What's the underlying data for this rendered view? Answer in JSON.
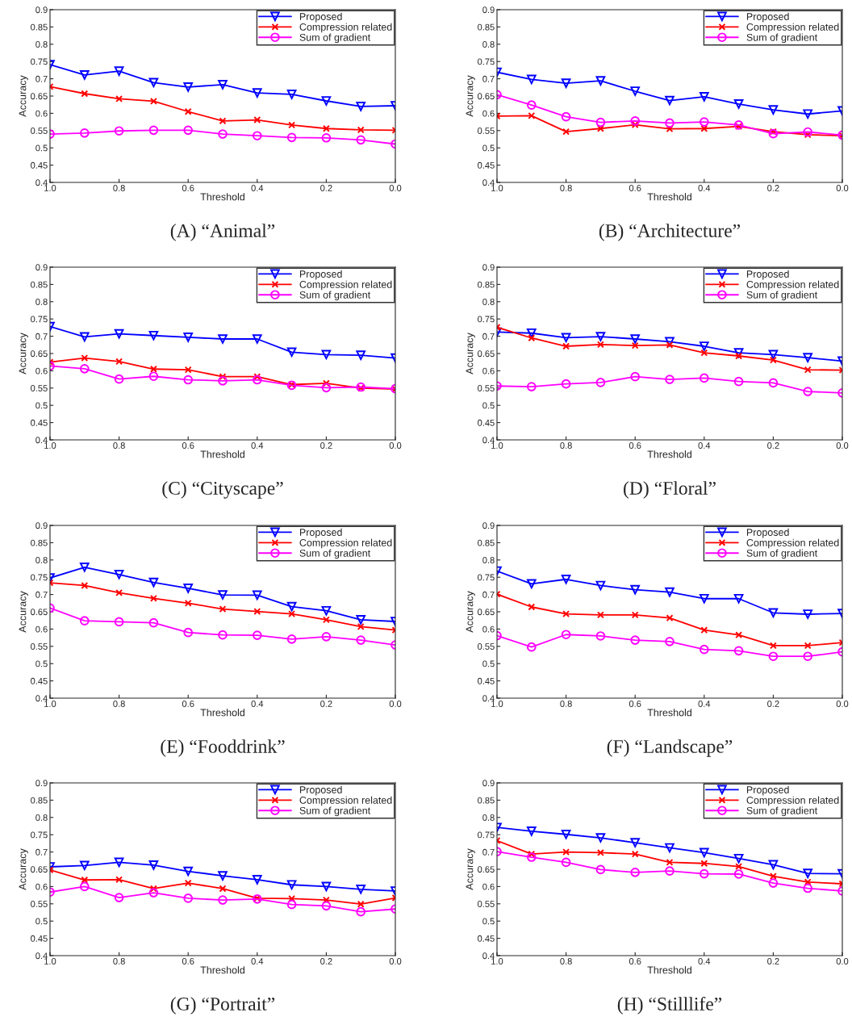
{
  "chart_data": [
    {
      "type": "line",
      "title": "(A) “Animal”",
      "xlabel": "Threshold",
      "ylabel": "Accuracy",
      "x": [
        1.0,
        0.9,
        0.8,
        0.7,
        0.6,
        0.5,
        0.4,
        0.3,
        0.2,
        0.1,
        0.0
      ],
      "xlim": [
        1.0,
        0.0
      ],
      "xticks": [
        {
          "value": 1.0,
          "label": "1.0"
        },
        {
          "value": 0.8,
          "label": "0.8"
        },
        {
          "value": 0.6,
          "label": "0.6"
        },
        {
          "value": 0.4,
          "label": "0.4"
        },
        {
          "value": 0.2,
          "label": "0.2"
        },
        {
          "value": 0.0,
          "label": "0.0"
        }
      ],
      "ylim": [
        0.4,
        0.9
      ],
      "yticks": [
        0.4,
        0.45,
        0.5,
        0.55,
        0.6,
        0.65,
        0.7,
        0.75,
        0.8,
        0.85,
        0.9
      ],
      "legend": "top right",
      "grid": false,
      "series": [
        {
          "name": "Proposed",
          "color": "#0000ff",
          "marker": "triangle",
          "values": [
            0.741,
            0.711,
            0.722,
            0.689,
            0.676,
            0.683,
            0.659,
            0.655,
            0.636,
            0.62,
            0.622
          ]
        },
        {
          "name": "Compression related",
          "color": "#ff0000",
          "marker": "cross",
          "values": [
            0.677,
            0.657,
            0.642,
            0.635,
            0.605,
            0.578,
            0.581,
            0.566,
            0.556,
            0.552,
            0.551
          ]
        },
        {
          "name": "Sum of gradient",
          "color": "#ff00ff",
          "marker": "circle",
          "values": [
            0.54,
            0.543,
            0.549,
            0.551,
            0.551,
            0.54,
            0.535,
            0.53,
            0.529,
            0.523,
            0.511
          ]
        }
      ]
    },
    {
      "type": "line",
      "title": "(B) “Architecture”",
      "xlabel": "Threshold",
      "ylabel": "Accuracy",
      "x": [
        1.0,
        0.9,
        0.8,
        0.7,
        0.6,
        0.5,
        0.4,
        0.3,
        0.2,
        0.1,
        0.0
      ],
      "xlim": [
        1.0,
        0.0
      ],
      "xticks": [
        {
          "value": 1.0,
          "label": "1.0"
        },
        {
          "value": 0.8,
          "label": "0.8"
        },
        {
          "value": 0.6,
          "label": "0.6"
        },
        {
          "value": 0.4,
          "label": "0.4"
        },
        {
          "value": 0.2,
          "label": "0.2"
        },
        {
          "value": 0.0,
          "label": "0.0"
        }
      ],
      "ylim": [
        0.4,
        0.9
      ],
      "yticks": [
        0.4,
        0.45,
        0.5,
        0.55,
        0.6,
        0.65,
        0.7,
        0.75,
        0.8,
        0.85,
        0.9
      ],
      "legend": "top right",
      "grid": false,
      "series": [
        {
          "name": "Proposed",
          "color": "#0000ff",
          "marker": "triangle",
          "values": [
            0.719,
            0.698,
            0.687,
            0.694,
            0.664,
            0.637,
            0.648,
            0.627,
            0.61,
            0.598,
            0.607
          ]
        },
        {
          "name": "Compression related",
          "color": "#ff0000",
          "marker": "cross",
          "values": [
            0.592,
            0.593,
            0.547,
            0.556,
            0.567,
            0.555,
            0.556,
            0.562,
            0.547,
            0.538,
            0.535
          ]
        },
        {
          "name": "Sum of gradient",
          "color": "#ff00ff",
          "marker": "circle",
          "values": [
            0.654,
            0.624,
            0.59,
            0.574,
            0.578,
            0.572,
            0.575,
            0.566,
            0.541,
            0.546,
            0.537
          ]
        }
      ]
    },
    {
      "type": "line",
      "title": "(C) “Cityscape”",
      "xlabel": "Threshold",
      "ylabel": "Accuracy",
      "x": [
        1.0,
        0.9,
        0.8,
        0.7,
        0.6,
        0.5,
        0.4,
        0.3,
        0.2,
        0.1,
        0.0
      ],
      "xlim": [
        1.0,
        0.0
      ],
      "xticks": [
        {
          "value": 1.0,
          "label": "1.0"
        },
        {
          "value": 0.8,
          "label": "0.8"
        },
        {
          "value": 0.6,
          "label": "0.6"
        },
        {
          "value": 0.4,
          "label": "0.4"
        },
        {
          "value": 0.2,
          "label": "0.2"
        },
        {
          "value": 0.0,
          "label": "0.0"
        }
      ],
      "ylim": [
        0.4,
        0.9
      ],
      "yticks": [
        0.4,
        0.45,
        0.5,
        0.55,
        0.6,
        0.65,
        0.7,
        0.75,
        0.8,
        0.85,
        0.9
      ],
      "legend": "top right",
      "grid": false,
      "series": [
        {
          "name": "Proposed",
          "color": "#0000ff",
          "marker": "triangle",
          "values": [
            0.728,
            0.698,
            0.707,
            0.702,
            0.697,
            0.692,
            0.692,
            0.654,
            0.647,
            0.645,
            0.637
          ]
        },
        {
          "name": "Compression related",
          "color": "#ff0000",
          "marker": "cross",
          "values": [
            0.625,
            0.637,
            0.627,
            0.605,
            0.603,
            0.583,
            0.583,
            0.56,
            0.564,
            0.55,
            0.547
          ]
        },
        {
          "name": "Sum of gradient",
          "color": "#ff00ff",
          "marker": "circle",
          "values": [
            0.614,
            0.606,
            0.576,
            0.584,
            0.574,
            0.571,
            0.574,
            0.558,
            0.551,
            0.553,
            0.548
          ]
        }
      ]
    },
    {
      "type": "line",
      "title": "(D) “Floral”",
      "xlabel": "Threshold",
      "ylabel": "Accuracy",
      "x": [
        1.0,
        0.9,
        0.8,
        0.7,
        0.6,
        0.5,
        0.4,
        0.3,
        0.2,
        0.1,
        0.0
      ],
      "xlim": [
        1.0,
        0.0
      ],
      "xticks": [
        {
          "value": 1.0,
          "label": "1.0"
        },
        {
          "value": 0.8,
          "label": "0.8"
        },
        {
          "value": 0.6,
          "label": "0.6"
        },
        {
          "value": 0.4,
          "label": "0.4"
        },
        {
          "value": 0.2,
          "label": "0.2"
        },
        {
          "value": 0.0,
          "label": "0.0"
        }
      ],
      "ylim": [
        0.4,
        0.9
      ],
      "yticks": [
        0.4,
        0.45,
        0.5,
        0.55,
        0.6,
        0.65,
        0.7,
        0.75,
        0.8,
        0.85,
        0.9
      ],
      "legend": "top right",
      "grid": false,
      "series": [
        {
          "name": "Proposed",
          "color": "#0000ff",
          "marker": "triangle",
          "values": [
            0.712,
            0.709,
            0.696,
            0.699,
            0.692,
            0.684,
            0.671,
            0.652,
            0.647,
            0.638,
            0.628
          ]
        },
        {
          "name": "Compression related",
          "color": "#ff0000",
          "marker": "cross",
          "values": [
            0.726,
            0.695,
            0.671,
            0.676,
            0.673,
            0.675,
            0.652,
            0.643,
            0.631,
            0.603,
            0.602
          ]
        },
        {
          "name": "Sum of gradient",
          "color": "#ff00ff",
          "marker": "circle",
          "values": [
            0.556,
            0.554,
            0.562,
            0.566,
            0.583,
            0.575,
            0.579,
            0.569,
            0.565,
            0.54,
            0.536
          ]
        }
      ]
    },
    {
      "type": "line",
      "title": "(E) “Fooddrink”",
      "xlabel": "Threshold",
      "ylabel": "Accuracy",
      "x": [
        1.0,
        0.9,
        0.8,
        0.7,
        0.6,
        0.5,
        0.4,
        0.3,
        0.2,
        0.1,
        0.0
      ],
      "xlim": [
        1.0,
        0.0
      ],
      "xticks": [
        {
          "value": 1.0,
          "label": "1.0"
        },
        {
          "value": 0.8,
          "label": "0.8"
        },
        {
          "value": 0.6,
          "label": "0.6"
        },
        {
          "value": 0.4,
          "label": "0.4"
        },
        {
          "value": 0.2,
          "label": "0.2"
        },
        {
          "value": 0.0,
          "label": "0.0"
        }
      ],
      "ylim": [
        0.4,
        0.9
      ],
      "yticks": [
        0.4,
        0.45,
        0.5,
        0.55,
        0.6,
        0.65,
        0.7,
        0.75,
        0.8,
        0.85,
        0.9
      ],
      "legend": "top right",
      "grid": false,
      "series": [
        {
          "name": "Proposed",
          "color": "#0000ff",
          "marker": "triangle",
          "values": [
            0.748,
            0.779,
            0.758,
            0.735,
            0.718,
            0.699,
            0.698,
            0.665,
            0.653,
            0.627,
            0.622
          ]
        },
        {
          "name": "Compression related",
          "color": "#ff0000",
          "marker": "cross",
          "values": [
            0.734,
            0.726,
            0.705,
            0.689,
            0.675,
            0.658,
            0.651,
            0.644,
            0.627,
            0.607,
            0.597
          ]
        },
        {
          "name": "Sum of gradient",
          "color": "#ff00ff",
          "marker": "circle",
          "values": [
            0.661,
            0.624,
            0.621,
            0.618,
            0.59,
            0.583,
            0.582,
            0.571,
            0.578,
            0.568,
            0.554
          ]
        }
      ]
    },
    {
      "type": "line",
      "title": "(F) “Landscape”",
      "xlabel": "Threshold",
      "ylabel": "Accuracy",
      "x": [
        1.0,
        0.9,
        0.8,
        0.7,
        0.6,
        0.5,
        0.4,
        0.3,
        0.2,
        0.1,
        0.0
      ],
      "xlim": [
        1.0,
        0.0
      ],
      "xticks": [
        {
          "value": 1.0,
          "label": "1.0"
        },
        {
          "value": 0.8,
          "label": "0.8"
        },
        {
          "value": 0.6,
          "label": "0.6"
        },
        {
          "value": 0.4,
          "label": "0.4"
        },
        {
          "value": 0.2,
          "label": "0.2"
        },
        {
          "value": 0.0,
          "label": "0.0"
        }
      ],
      "ylim": [
        0.4,
        0.9
      ],
      "yticks": [
        0.4,
        0.45,
        0.5,
        0.55,
        0.6,
        0.65,
        0.7,
        0.75,
        0.8,
        0.85,
        0.9
      ],
      "legend": "top right",
      "grid": false,
      "series": [
        {
          "name": "Proposed",
          "color": "#0000ff",
          "marker": "triangle",
          "values": [
            0.768,
            0.731,
            0.744,
            0.726,
            0.714,
            0.707,
            0.688,
            0.688,
            0.647,
            0.643,
            0.645
          ]
        },
        {
          "name": "Compression related",
          "color": "#ff0000",
          "marker": "cross",
          "values": [
            0.701,
            0.664,
            0.644,
            0.641,
            0.641,
            0.632,
            0.597,
            0.583,
            0.552,
            0.552,
            0.561
          ]
        },
        {
          "name": "Sum of gradient",
          "color": "#ff00ff",
          "marker": "circle",
          "values": [
            0.581,
            0.548,
            0.584,
            0.58,
            0.568,
            0.564,
            0.541,
            0.537,
            0.521,
            0.521,
            0.534
          ]
        }
      ]
    },
    {
      "type": "line",
      "title": "(G) “Portrait”",
      "xlabel": "Threshold",
      "ylabel": "Accuracy",
      "x": [
        1.0,
        0.9,
        0.8,
        0.7,
        0.6,
        0.5,
        0.4,
        0.3,
        0.2,
        0.1,
        0.0
      ],
      "xlim": [
        1.0,
        0.0
      ],
      "xticks": [
        {
          "value": 1.0,
          "label": "1.0"
        },
        {
          "value": 0.8,
          "label": "0.8"
        },
        {
          "value": 0.6,
          "label": "0.6"
        },
        {
          "value": 0.4,
          "label": "0.4"
        },
        {
          "value": 0.2,
          "label": "0.2"
        },
        {
          "value": 0.0,
          "label": "0.0"
        }
      ],
      "ylim": [
        0.4,
        0.9
      ],
      "yticks": [
        0.4,
        0.45,
        0.5,
        0.55,
        0.6,
        0.65,
        0.7,
        0.75,
        0.8,
        0.85,
        0.9
      ],
      "legend": "top right",
      "grid": false,
      "series": [
        {
          "name": "Proposed",
          "color": "#0000ff",
          "marker": "triangle",
          "values": [
            0.657,
            0.661,
            0.67,
            0.662,
            0.644,
            0.631,
            0.62,
            0.605,
            0.6,
            0.592,
            0.587
          ]
        },
        {
          "name": "Compression related",
          "color": "#ff0000",
          "marker": "cross",
          "values": [
            0.648,
            0.619,
            0.62,
            0.594,
            0.61,
            0.594,
            0.566,
            0.565,
            0.561,
            0.549,
            0.567
          ]
        },
        {
          "name": "Sum of gradient",
          "color": "#ff00ff",
          "marker": "circle",
          "values": [
            0.584,
            0.6,
            0.568,
            0.582,
            0.566,
            0.561,
            0.564,
            0.548,
            0.544,
            0.527,
            0.535
          ]
        }
      ]
    },
    {
      "type": "line",
      "title": "(H) “Stilllife”",
      "xlabel": "Threshold",
      "ylabel": "Accuracy",
      "x": [
        1.0,
        0.9,
        0.8,
        0.7,
        0.6,
        0.5,
        0.4,
        0.3,
        0.2,
        0.1,
        0.0
      ],
      "xlim": [
        1.0,
        0.0
      ],
      "xticks": [
        {
          "value": 1.0,
          "label": "1.0"
        },
        {
          "value": 0.8,
          "label": "0.8"
        },
        {
          "value": 0.6,
          "label": "0.6"
        },
        {
          "value": 0.4,
          "label": "0.4"
        },
        {
          "value": 0.2,
          "label": "0.2"
        },
        {
          "value": 0.0,
          "label": "0.0"
        }
      ],
      "ylim": [
        0.4,
        0.9
      ],
      "yticks": [
        0.4,
        0.45,
        0.5,
        0.55,
        0.6,
        0.65,
        0.7,
        0.75,
        0.8,
        0.85,
        0.9
      ],
      "legend": "top right",
      "grid": false,
      "series": [
        {
          "name": "Proposed",
          "color": "#0000ff",
          "marker": "triangle",
          "values": [
            0.771,
            0.76,
            0.751,
            0.741,
            0.727,
            0.712,
            0.698,
            0.681,
            0.663,
            0.638,
            0.637
          ]
        },
        {
          "name": "Compression related",
          "color": "#ff0000",
          "marker": "cross",
          "values": [
            0.733,
            0.694,
            0.7,
            0.698,
            0.694,
            0.67,
            0.667,
            0.658,
            0.63,
            0.613,
            0.608
          ]
        },
        {
          "name": "Sum of gradient",
          "color": "#ff00ff",
          "marker": "circle",
          "values": [
            0.701,
            0.685,
            0.67,
            0.649,
            0.641,
            0.645,
            0.637,
            0.636,
            0.61,
            0.595,
            0.587
          ]
        }
      ]
    }
  ]
}
